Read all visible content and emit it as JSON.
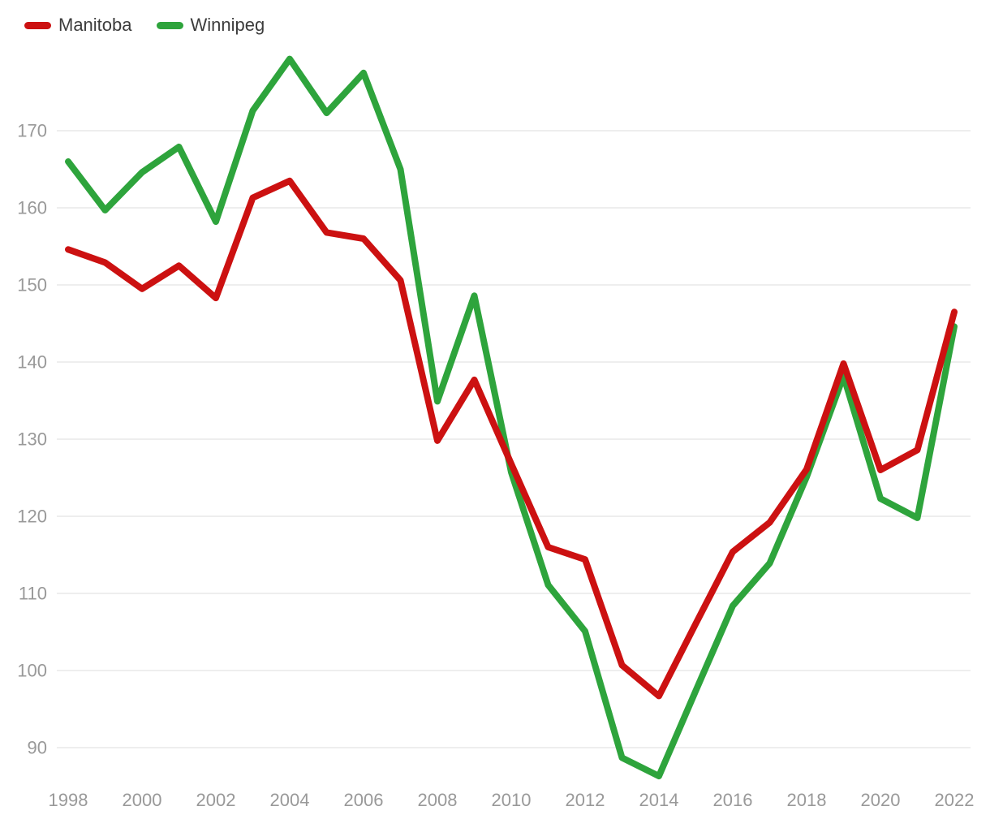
{
  "legend": {
    "items": [
      {
        "label": "Manitoba",
        "color": "#cc1111"
      },
      {
        "label": "Winnipeg",
        "color": "#2ea43c"
      }
    ]
  },
  "chart_data": {
    "type": "line",
    "title": "",
    "xlabel": "",
    "ylabel": "",
    "x": [
      1998,
      1999,
      2000,
      2001,
      2002,
      2003,
      2004,
      2005,
      2006,
      2007,
      2008,
      2009,
      2010,
      2011,
      2012,
      2013,
      2014,
      2015,
      2016,
      2017,
      2018,
      2019,
      2020,
      2021,
      2022
    ],
    "series": [
      {
        "name": "Manitoba",
        "color": "#cc1111",
        "values": [
          154.6,
          152.9,
          149.5,
          152.5,
          148.3,
          161.3,
          163.5,
          156.8,
          156.0,
          150.6,
          129.8,
          137.7,
          126.8,
          116.0,
          114.4,
          100.7,
          96.7,
          106.1,
          115.4,
          119.2,
          126.1,
          139.8,
          126.0,
          128.6,
          146.5
        ]
      },
      {
        "name": "Winnipeg",
        "color": "#2ea43c",
        "values": [
          166.0,
          159.7,
          164.6,
          167.9,
          158.2,
          172.6,
          179.3,
          172.3,
          177.5,
          165.0,
          134.9,
          148.6,
          125.7,
          111.1,
          105.1,
          88.7,
          86.3,
          97.4,
          108.4,
          113.9,
          125.1,
          138.2,
          122.3,
          119.8,
          144.6
        ]
      }
    ],
    "xticks": [
      1998,
      2000,
      2002,
      2004,
      2006,
      2008,
      2010,
      2012,
      2014,
      2016,
      2018,
      2020,
      2022
    ],
    "yticks": [
      90,
      100,
      110,
      120,
      130,
      140,
      150,
      160,
      170
    ],
    "ylim": [
      84,
      182
    ],
    "grid": "horizontal",
    "legend_position": "top-left",
    "background_color": "#ffffff",
    "axis_label_color": "#999999",
    "gridline_color": "#e8e8e8",
    "line_width": 8
  }
}
